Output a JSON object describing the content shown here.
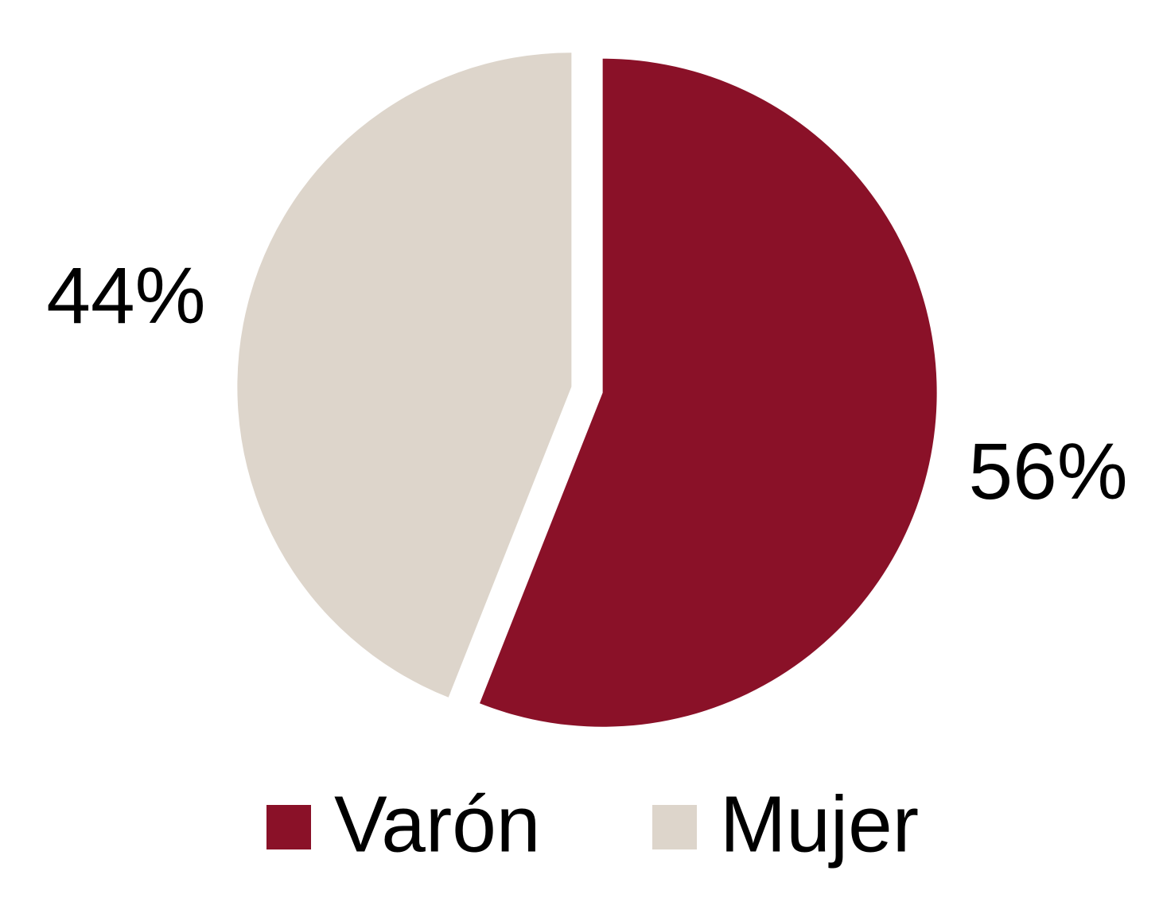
{
  "chart_data": {
    "type": "pie",
    "categories": [
      "Varón",
      "Mujer"
    ],
    "values": [
      56,
      44
    ],
    "value_labels": [
      "56%",
      "44%"
    ],
    "colors": [
      "#8a1128",
      "#ddd5cb"
    ],
    "legend": "bottom"
  }
}
